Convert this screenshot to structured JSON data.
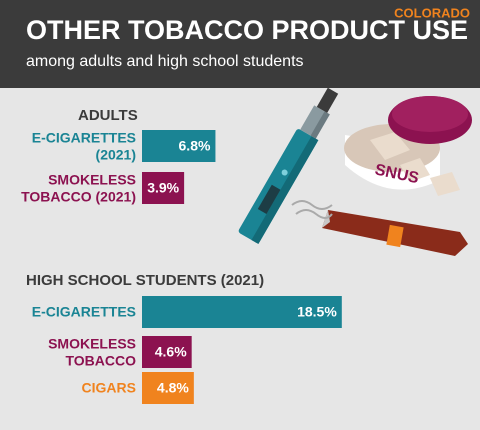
{
  "header": {
    "title": "OTHER TOBACCO PRODUCT USE",
    "subtitle": "among adults and high school students",
    "state": "COLORADO"
  },
  "illustration": {
    "tin_label": "SNUS"
  },
  "chart_data": [
    {
      "type": "bar",
      "orientation": "horizontal",
      "title": "ADULTS",
      "categories": [
        "E-CIGARETTES\n(2021)",
        "SMOKELESS\nTOBACCO (2021)"
      ],
      "values": [
        6.8,
        3.9
      ],
      "value_labels": [
        "6.8%",
        "3.9%"
      ],
      "colors": [
        "#1a8494",
        "#8c1250"
      ]
    },
    {
      "type": "bar",
      "orientation": "horizontal",
      "title": "HIGH SCHOOL STUDENTS (2021)",
      "categories": [
        "E-CIGARETTES",
        "SMOKELESS\nTOBACCO",
        "CIGARS"
      ],
      "values": [
        18.5,
        4.6,
        4.8
      ],
      "value_labels": [
        "18.5%",
        "4.6%",
        "4.8%"
      ],
      "colors": [
        "#1a8494",
        "#8c1250",
        "#f0831e"
      ]
    }
  ]
}
